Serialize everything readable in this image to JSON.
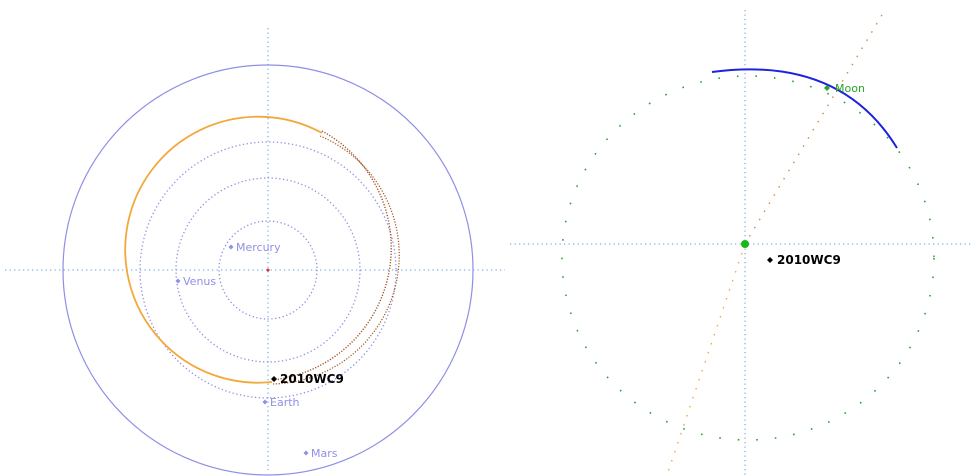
{
  "solar_view": {
    "planets": [
      {
        "name": "Mercury",
        "label": "Mercury",
        "orbit": "dotted"
      },
      {
        "name": "Venus",
        "label": "Venus",
        "orbit": "dotted"
      },
      {
        "name": "Earth",
        "label": "Earth",
        "orbit": "dotted"
      },
      {
        "name": "Mars",
        "label": "Mars",
        "orbit": "solid"
      }
    ],
    "asteroid": {
      "label": "2010WC9"
    }
  },
  "earth_view": {
    "moon": {
      "label": "Moon"
    },
    "asteroid": {
      "label": "2010WC9"
    }
  },
  "colors": {
    "planet": "#8f8fe6",
    "axis": "#7fb2e6",
    "asteroid_orbit_near": "#a0521e",
    "asteroid_orbit_far": "#f2a93b",
    "moon": "#2aa52a",
    "moon_track": "#1e22e0",
    "sun": "#e03030",
    "earth": "#18b818",
    "asteroid_marker": "#000000"
  }
}
